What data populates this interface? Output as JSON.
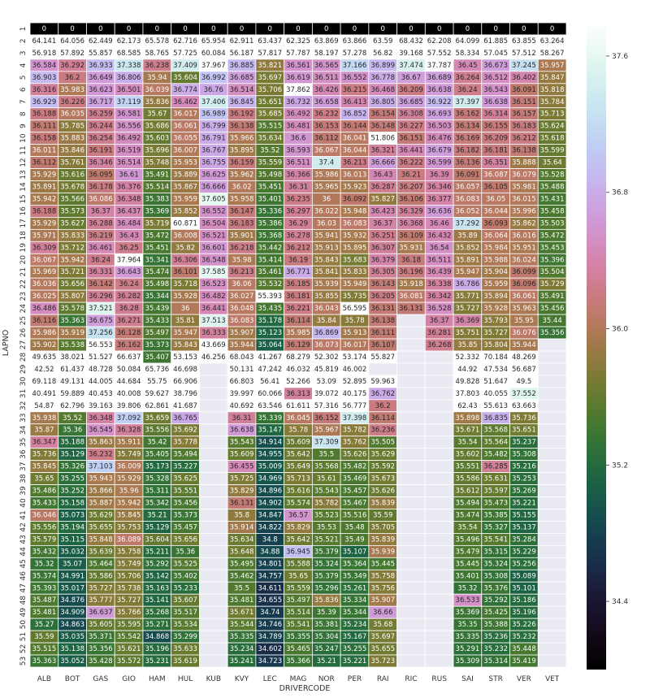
{
  "chart_data": {
    "type": "heatmap",
    "xlabel": "DRIVERCODE",
    "ylabel": "LAPNO",
    "x": [
      "ALB",
      "BOT",
      "GAS",
      "GIO",
      "HAM",
      "HUL",
      "KUB",
      "KVY",
      "LEC",
      "MAG",
      "NOR",
      "PER",
      "RAI",
      "RIC",
      "RUS",
      "SAI",
      "STR",
      "VER",
      "VET"
    ],
    "y": [
      1,
      2,
      3,
      4,
      5,
      6,
      7,
      8,
      9,
      10,
      11,
      12,
      13,
      14,
      15,
      16,
      17,
      18,
      19,
      20,
      21,
      22,
      23,
      24,
      25,
      26,
      27,
      28,
      29,
      30,
      31,
      32,
      33,
      34,
      35,
      36,
      37,
      38,
      39,
      40,
      41,
      42,
      43,
      44,
      45,
      46,
      47,
      48,
      49,
      50,
      51,
      52,
      53
    ],
    "colorbar": {
      "colormap": "cubehelix",
      "vmin": 34.0,
      "vmax": 37.8,
      "ticks": [
        34.4,
        35.2,
        36.0,
        36.8,
        37.6
      ]
    },
    "values": [
      [
        0,
        0,
        0,
        0,
        0,
        0,
        0,
        0,
        0,
        0,
        0,
        0,
        0,
        0,
        0,
        0,
        0,
        0,
        0
      ],
      [
        64.141,
        64.056,
        62.449,
        62.173,
        65.578,
        62.716,
        65.954,
        62.911,
        63.437,
        62.325,
        63.869,
        63.866,
        63.59,
        68.432,
        62.208,
        64.099,
        61.885,
        63.855,
        63.264
      ],
      [
        56.918,
        57.892,
        55.857,
        68.585,
        58.765,
        57.725,
        60.084,
        56.187,
        57.817,
        57.787,
        58.197,
        57.278,
        56.82,
        39.168,
        57.552,
        58.334,
        57.045,
        57.512,
        58.267
      ],
      [
        36.584,
        36.292,
        36.933,
        37.338,
        36.238,
        37.409,
        37.967,
        36.885,
        35.821,
        36.561,
        36.565,
        37.166,
        36.899,
        37.474,
        37.787,
        36.45,
        36.673,
        37.245,
        35.957
      ],
      [
        36.903,
        36.2,
        36.649,
        36.806,
        35.94,
        35.604,
        36.992,
        36.685,
        35.697,
        36.619,
        36.511,
        36.552,
        36.778,
        36.67,
        36.689,
        36.264,
        36.512,
        36.402,
        35.847
      ],
      [
        36.316,
        35.983,
        36.623,
        36.501,
        36.039,
        36.774,
        36.76,
        36.514,
        35.706,
        37.862,
        36.426,
        36.215,
        36.468,
        36.209,
        36.638,
        36.24,
        36.543,
        36.091,
        35.818
      ],
      [
        36.929,
        36.226,
        36.717,
        37.119,
        35.836,
        36.462,
        37.406,
        36.845,
        35.651,
        36.732,
        36.658,
        36.413,
        36.805,
        36.685,
        36.922,
        37.397,
        36.638,
        36.151,
        35.784
      ],
      [
        36.188,
        36.035,
        36.259,
        36.581,
        35.67,
        36.017,
        36.989,
        36.192,
        35.685,
        36.492,
        36.232,
        36.852,
        36.154,
        36.308,
        36.693,
        36.162,
        36.314,
        36.157,
        35.713
      ],
      [
        36.111,
        35.785,
        36.244,
        36.556,
        35.686,
        36.061,
        36.799,
        36.138,
        35.515,
        36.481,
        36.153,
        36.144,
        36.148,
        36.227,
        36.503,
        36.134,
        36.155,
        36.183,
        35.624
      ],
      [
        36.158,
        35.883,
        36.254,
        36.492,
        35.603,
        36.055,
        36.791,
        35.966,
        35.634,
        36.6,
        36.112,
        36.041,
        51.806,
        36.151,
        36.476,
        36.169,
        36.209,
        36.212,
        35.618
      ],
      [
        36.011,
        35.846,
        36.191,
        36.519,
        35.696,
        36.007,
        36.767,
        35.895,
        35.52,
        36.593,
        36.067,
        36.044,
        36.321,
        36.441,
        36.679,
        36.182,
        36.181,
        36.138,
        35.599
      ],
      [
        36.112,
        35.761,
        36.346,
        36.514,
        35.748,
        35.953,
        36.755,
        36.159,
        35.559,
        36.511,
        37.4,
        36.213,
        36.666,
        36.222,
        36.599,
        36.136,
        36.351,
        35.888,
        35.64
      ],
      [
        35.929,
        35.616,
        36.095,
        36.61,
        35.491,
        35.889,
        36.625,
        35.962,
        35.498,
        36.366,
        35.986,
        36.013,
        36.43,
        36.21,
        36.39,
        36.091,
        36.087,
        36.079,
        35.528
      ],
      [
        35.891,
        35.678,
        36.178,
        36.376,
        35.514,
        35.867,
        36.666,
        36.02,
        35.451,
        36.31,
        35.965,
        35.923,
        36.287,
        36.207,
        36.346,
        36.057,
        36.105,
        35.981,
        35.488
      ],
      [
        35.942,
        35.566,
        36.086,
        36.348,
        35.383,
        35.959,
        37.605,
        35.958,
        35.401,
        36.235,
        36.0,
        36.092,
        35.827,
        36.106,
        36.377,
        36.083,
        36.05,
        36.015,
        35.431
      ],
      [
        36.188,
        35.573,
        36.37,
        36.437,
        35.369,
        35.852,
        36.552,
        36.147,
        35.336,
        36.297,
        36.022,
        35.948,
        36.423,
        36.329,
        36.636,
        36.052,
        36.044,
        35.996,
        35.458
      ],
      [
        35.929,
        35.627,
        36.288,
        36.484,
        35.719,
        60.871,
        36.504,
        36.183,
        35.386,
        36.29,
        36.03,
        36.083,
        36.37,
        36.368,
        36.46,
        37.292,
        36.093,
        35.862,
        35.503
      ],
      [
        35.971,
        35.833,
        36.219,
        36.43,
        35.472,
        36.008,
        36.521,
        35.901,
        35.368,
        36.278,
        35.941,
        35.932,
        36.251,
        36.109,
        36.432,
        35.89,
        36.064,
        36.016,
        35.472
      ],
      [
        36.309,
        35.712,
        36.461,
        36.25,
        35.451,
        35.82,
        36.601,
        36.218,
        35.442,
        36.212,
        35.913,
        35.895,
        36.307,
        35.931,
        36.54,
        35.852,
        35.984,
        35.951,
        35.453
      ],
      [
        36.067,
        35.942,
        36.24,
        37.964,
        35.341,
        36.306,
        36.548,
        35.98,
        35.414,
        36.19,
        35.843,
        35.683,
        36.379,
        36.18,
        36.511,
        35.891,
        35.988,
        36.024,
        35.396
      ],
      [
        35.969,
        35.721,
        36.331,
        36.643,
        35.474,
        36.101,
        37.585,
        36.213,
        35.461,
        36.771,
        35.841,
        35.833,
        36.305,
        36.196,
        36.439,
        35.947,
        35.904,
        36.099,
        35.504
      ],
      [
        36.036,
        35.656,
        36.142,
        36.24,
        35.498,
        35.718,
        36.523,
        36.06,
        35.532,
        36.185,
        35.939,
        35.949,
        36.143,
        35.918,
        36.338,
        36.786,
        35.959,
        36.096,
        35.729
      ],
      [
        36.025,
        35.807,
        36.296,
        36.282,
        35.344,
        35.928,
        36.482,
        36.027,
        55.393,
        36.181,
        35.855,
        35.735,
        36.205,
        36.081,
        36.342,
        35.771,
        35.894,
        36.061,
        35.491
      ],
      [
        36.486,
        35.578,
        37.521,
        36.28,
        35.439,
        36.0,
        36.441,
        36.048,
        35.435,
        36.221,
        36.043,
        56.595,
        36.131,
        36.131,
        36.528,
        35.727,
        35.928,
        35.963,
        35.456
      ],
      [
        36.116,
        35.363,
        36.675,
        36.271,
        35.433,
        35.81,
        37.513,
        36.083,
        35.178,
        36.114,
        35.84,
        35.78,
        36.138,
        null,
        36.37,
        36.369,
        35.793,
        35.95,
        35.44
      ],
      [
        35.986,
        35.919,
        37.256,
        36.128,
        35.497,
        35.947,
        36.333,
        35.907,
        35.123,
        35.985,
        36.869,
        35.913,
        36.111,
        null,
        36.281,
        35.751,
        35.727,
        36.076,
        35.356
      ],
      [
        35.902,
        35.538,
        56.553,
        36.162,
        35.373,
        35.843,
        43.669,
        35.944,
        35.064,
        36.129,
        36.073,
        36.017,
        36.107,
        null,
        36.268,
        35.85,
        35.804,
        35.944,
        null
      ],
      [
        49.635,
        38.021,
        51.527,
        66.637,
        35.407,
        53.153,
        46.256,
        68.043,
        41.267,
        68.279,
        52.302,
        53.174,
        55.827,
        null,
        null,
        52.332,
        70.184,
        48.269,
        null
      ],
      [
        42.52,
        61.437,
        48.728,
        50.084,
        65.736,
        46.698,
        null,
        50.131,
        47.242,
        46.032,
        45.819,
        46.002,
        null,
        null,
        null,
        44.92,
        47.534,
        56.687,
        null
      ],
      [
        69.118,
        49.131,
        44.005,
        44.684,
        55.75,
        66.906,
        null,
        66.803,
        56.41,
        52.266,
        53.09,
        52.895,
        59.963,
        null,
        null,
        49.828,
        51.647,
        49.5,
        null
      ],
      [
        40.491,
        59.889,
        40.453,
        40.008,
        59.627,
        38.796,
        null,
        39.997,
        60.066,
        36.313,
        39.072,
        40.175,
        36.762,
        null,
        null,
        37.803,
        40.055,
        37.552,
        null
      ],
      [
        54.87,
        62.796,
        39.163,
        39.806,
        62.861,
        41.687,
        null,
        40.692,
        63.546,
        61.611,
        57.316,
        56.777,
        36.2,
        null,
        null,
        62.43,
        55.613,
        63.663,
        null
      ],
      [
        35.938,
        35.52,
        36.348,
        37.092,
        35.659,
        36.765,
        null,
        36.31,
        35.339,
        36.045,
        36.152,
        37.398,
        36.114,
        null,
        null,
        35.898,
        36.835,
        35.736,
        null
      ],
      [
        35.87,
        35.36,
        36.545,
        36.328,
        35.556,
        35.692,
        null,
        36.638,
        35.147,
        35.78,
        35.967,
        35.782,
        36.236,
        null,
        null,
        35.671,
        35.568,
        35.651,
        null
      ],
      [
        36.347,
        35.188,
        35.863,
        35.911,
        35.42,
        35.778,
        null,
        35.543,
        34.914,
        35.609,
        37.309,
        35.762,
        35.505,
        null,
        null,
        35.54,
        35.564,
        35.237,
        null
      ],
      [
        35.736,
        35.129,
        36.232,
        35.749,
        35.405,
        35.494,
        null,
        35.609,
        34.955,
        35.642,
        35.5,
        35.626,
        35.629,
        null,
        null,
        35.602,
        35.482,
        35.308,
        null
      ],
      [
        35.845,
        35.326,
        37.103,
        36.009,
        35.173,
        35.227,
        null,
        36.455,
        35.009,
        35.649,
        35.568,
        35.482,
        35.592,
        null,
        null,
        35.551,
        36.285,
        35.216,
        null
      ],
      [
        35.65,
        35.255,
        35.943,
        35.929,
        35.328,
        35.625,
        null,
        35.725,
        34.969,
        35.713,
        35.61,
        35.469,
        35.673,
        null,
        null,
        35.586,
        35.631,
        35.253,
        null
      ],
      [
        35.486,
        35.252,
        35.866,
        35.96,
        35.311,
        35.551,
        null,
        35.829,
        34.896,
        35.616,
        35.543,
        35.457,
        35.626,
        null,
        null,
        35.612,
        35.597,
        35.269,
        null
      ],
      [
        35.433,
        35.158,
        35.887,
        35.942,
        35.342,
        35.456,
        null,
        36.131,
        34.902,
        35.574,
        35.782,
        35.467,
        35.839,
        null,
        null,
        35.494,
        35.473,
        35.221,
        null
      ],
      [
        36.046,
        35.073,
        35.629,
        35.845,
        35.21,
        35.373,
        null,
        35.8,
        34.847,
        36.57,
        35.523,
        35.516,
        35.59,
        null,
        null,
        35.474,
        35.385,
        35.155,
        null
      ],
      [
        35.556,
        35.194,
        35.655,
        35.753,
        35.129,
        35.457,
        null,
        35.914,
        34.822,
        35.829,
        35.53,
        35.48,
        35.705,
        null,
        null,
        35.54,
        35.327,
        35.137,
        null
      ],
      [
        35.579,
        35.115,
        35.848,
        36.089,
        35.604,
        35.656,
        null,
        35.634,
        34.8,
        35.642,
        35.521,
        35.49,
        35.839,
        null,
        null,
        35.496,
        35.541,
        35.284,
        null
      ],
      [
        35.432,
        35.032,
        35.639,
        35.758,
        35.211,
        35.36,
        null,
        35.648,
        34.88,
        36.945,
        35.379,
        35.107,
        35.939,
        null,
        null,
        35.479,
        35.315,
        35.229,
        null
      ],
      [
        35.32,
        35.07,
        35.464,
        35.749,
        35.292,
        35.525,
        null,
        35.495,
        34.801,
        35.588,
        35.324,
        35.364,
        35.445,
        null,
        null,
        35.445,
        35.324,
        35.256,
        null
      ],
      [
        35.374,
        34.991,
        35.586,
        35.706,
        35.142,
        35.402,
        null,
        35.462,
        34.757,
        35.65,
        35.379,
        35.349,
        35.758,
        null,
        null,
        35.401,
        35.308,
        35.089,
        null
      ],
      [
        35.393,
        35.017,
        35.727,
        35.738,
        35.163,
        35.233,
        null,
        35.5,
        34.611,
        35.559,
        35.296,
        35.261,
        35.756,
        null,
        null,
        35.32,
        35.376,
        35.101,
        null
      ],
      [
        35.487,
        34.876,
        35.777,
        35.727,
        35.141,
        35.607,
        null,
        35.481,
        34.655,
        35.497,
        35.836,
        35.334,
        35.907,
        null,
        null,
        36.533,
        35.292,
        35.186,
        null
      ],
      [
        35.481,
        34.909,
        36.637,
        35.766,
        35.268,
        35.517,
        null,
        35.671,
        34.74,
        35.514,
        35.39,
        35.344,
        36.66,
        null,
        null,
        35.369,
        35.425,
        35.196,
        null
      ],
      [
        35.27,
        34.863,
        35.605,
        35.595,
        35.271,
        35.534,
        null,
        35.544,
        34.746,
        35.541,
        35.381,
        35.234,
        35.68,
        null,
        null,
        35.35,
        35.388,
        35.226,
        null
      ],
      [
        35.59,
        35.035,
        35.371,
        35.542,
        34.868,
        35.299,
        null,
        35.335,
        34.789,
        35.355,
        35.304,
        35.167,
        35.697,
        null,
        null,
        35.335,
        35.236,
        35.232,
        null
      ],
      [
        35.515,
        35.138,
        35.356,
        35.621,
        35.196,
        35.633,
        null,
        35.234,
        34.602,
        35.465,
        35.247,
        35.255,
        35.655,
        null,
        null,
        35.291,
        35.232,
        35.448,
        null
      ],
      [
        35.363,
        35.052,
        35.428,
        35.572,
        35.231,
        35.619,
        null,
        35.241,
        34.723,
        35.366,
        35.21,
        35.221,
        35.723,
        null,
        null,
        35.309,
        35.314,
        35.419,
        null
      ]
    ]
  }
}
